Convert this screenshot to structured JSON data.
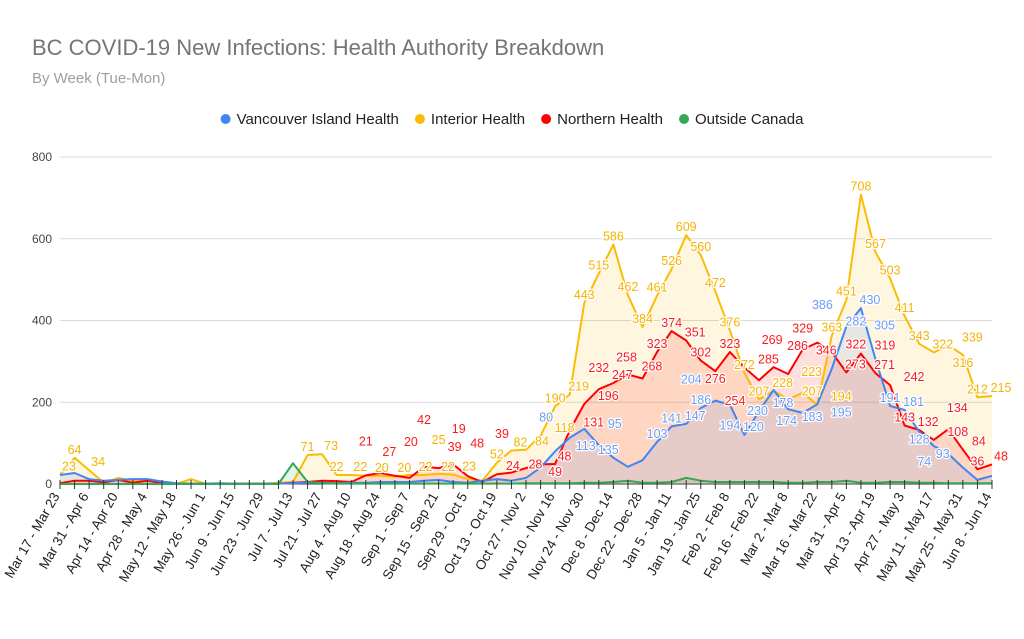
{
  "chart_data": {
    "type": "area",
    "title": "BC COVID-19 New Infections: Health Authority Breakdown",
    "subtitle": "By Week (Tue-Mon)",
    "legend_position": "top",
    "grid": true,
    "ylim": [
      0,
      800
    ],
    "yticks": [
      0,
      200,
      400,
      600,
      800
    ],
    "x_tick_labels": [
      "Mar 17 - Mar 23",
      "Mar 31 - Apr 6",
      "Apr 14 - Apr 20",
      "Apr 28 - May 4",
      "May 12 - May 18",
      "May 26 - Jun 1",
      "Jun 9 - Jun 15",
      "Jun 23 - Jun 29",
      "Jul 7 - Jul 13",
      "Jul 21 - Jul 27",
      "Aug 4 - Aug 10",
      "Aug 18 - Aug 24",
      "Sep 1 - Sep 7",
      "Sep 15 - Sep 21",
      "Sep 29 - Oct 5",
      "Oct 13 - Oct 19",
      "Oct 27 - Nov 2",
      "Nov 10 - Nov 16",
      "Nov 24 - Nov 30",
      "Dec 8 - Dec 14",
      "Dec 22 - Dec 28",
      "Jan 5 - Jan 11",
      "Jan 19 - Jan 25",
      "Feb 2 - Feb 8",
      "Feb 16 - Feb 22",
      "Mar 2 - Mar 8",
      "Mar 16 - Mar 22",
      "Mar 31 - Apr 5",
      "Apr 13 - Apr 19",
      "Apr 27 - May 3",
      "May 11 - May 17",
      "May 25 - May 31",
      "Jun 8 - Jun 14"
    ],
    "series": [
      {
        "name": "Interior Health",
        "color": "#FBBC04",
        "values": [
          23,
          64,
          34,
          3,
          15,
          8,
          10,
          2,
          0,
          12,
          0,
          0,
          0,
          0,
          0,
          3,
          5,
          71,
          73,
          22,
          22,
          20,
          20,
          18,
          22,
          22,
          25,
          23,
          12,
          8,
          52,
          82,
          84,
          118,
          190,
          219,
          443,
          515,
          586,
          462,
          384,
          461,
          526,
          609,
          560,
          472,
          376,
          272,
          207,
          228,
          207,
          223,
          194,
          363,
          451,
          708,
          567,
          503,
          411,
          343,
          322,
          339,
          316,
          212,
          215
        ]
      },
      {
        "name": "Northern Health",
        "color": "#FF0000",
        "values": [
          2,
          8,
          8,
          4,
          10,
          3,
          8,
          2,
          1,
          1,
          1,
          1,
          1,
          1,
          1,
          1,
          3,
          5,
          8,
          7,
          5,
          21,
          27,
          20,
          15,
          42,
          39,
          48,
          19,
          5,
          24,
          28,
          39,
          48,
          49,
          131,
          196,
          232,
          247,
          268,
          258,
          323,
          374,
          351,
          302,
          276,
          323,
          285,
          254,
          286,
          269,
          329,
          346,
          322,
          273,
          319,
          271,
          242,
          143,
          132,
          108,
          134,
          84,
          36,
          48
        ]
      },
      {
        "name": "Vancouver Island Health",
        "color": "#4285F4",
        "values": [
          22,
          27,
          12,
          8,
          10,
          12,
          12,
          6,
          2,
          1,
          1,
          2,
          1,
          1,
          1,
          1,
          2,
          3,
          3,
          2,
          3,
          3,
          5,
          5,
          5,
          8,
          10,
          5,
          3,
          8,
          12,
          8,
          15,
          40,
          80,
          113,
          135,
          95,
          64,
          42,
          58,
          103,
          141,
          147,
          186,
          204,
          194,
          120,
          178,
          230,
          183,
          174,
          195,
          282,
          386,
          430,
          305,
          191,
          181,
          128,
          93,
          74,
          40,
          10,
          20
        ]
      },
      {
        "name": "Outside Canada",
        "color": "#34A853",
        "values": [
          0,
          0,
          0,
          0,
          0,
          0,
          0,
          0,
          0,
          0,
          0,
          0,
          0,
          0,
          0,
          0,
          51,
          5,
          2,
          1,
          1,
          1,
          1,
          1,
          1,
          1,
          1,
          1,
          1,
          1,
          1,
          1,
          2,
          2,
          2,
          2,
          3,
          3,
          5,
          8,
          3,
          3,
          5,
          15,
          8,
          5,
          5,
          5,
          5,
          5,
          3,
          3,
          5,
          5,
          8,
          3,
          3,
          5,
          5,
          3,
          3,
          2,
          2,
          2,
          2
        ]
      }
    ],
    "legend_order": [
      "Vancouver Island Health",
      "Interior Health",
      "Northern Health",
      "Outside Canada"
    ]
  }
}
